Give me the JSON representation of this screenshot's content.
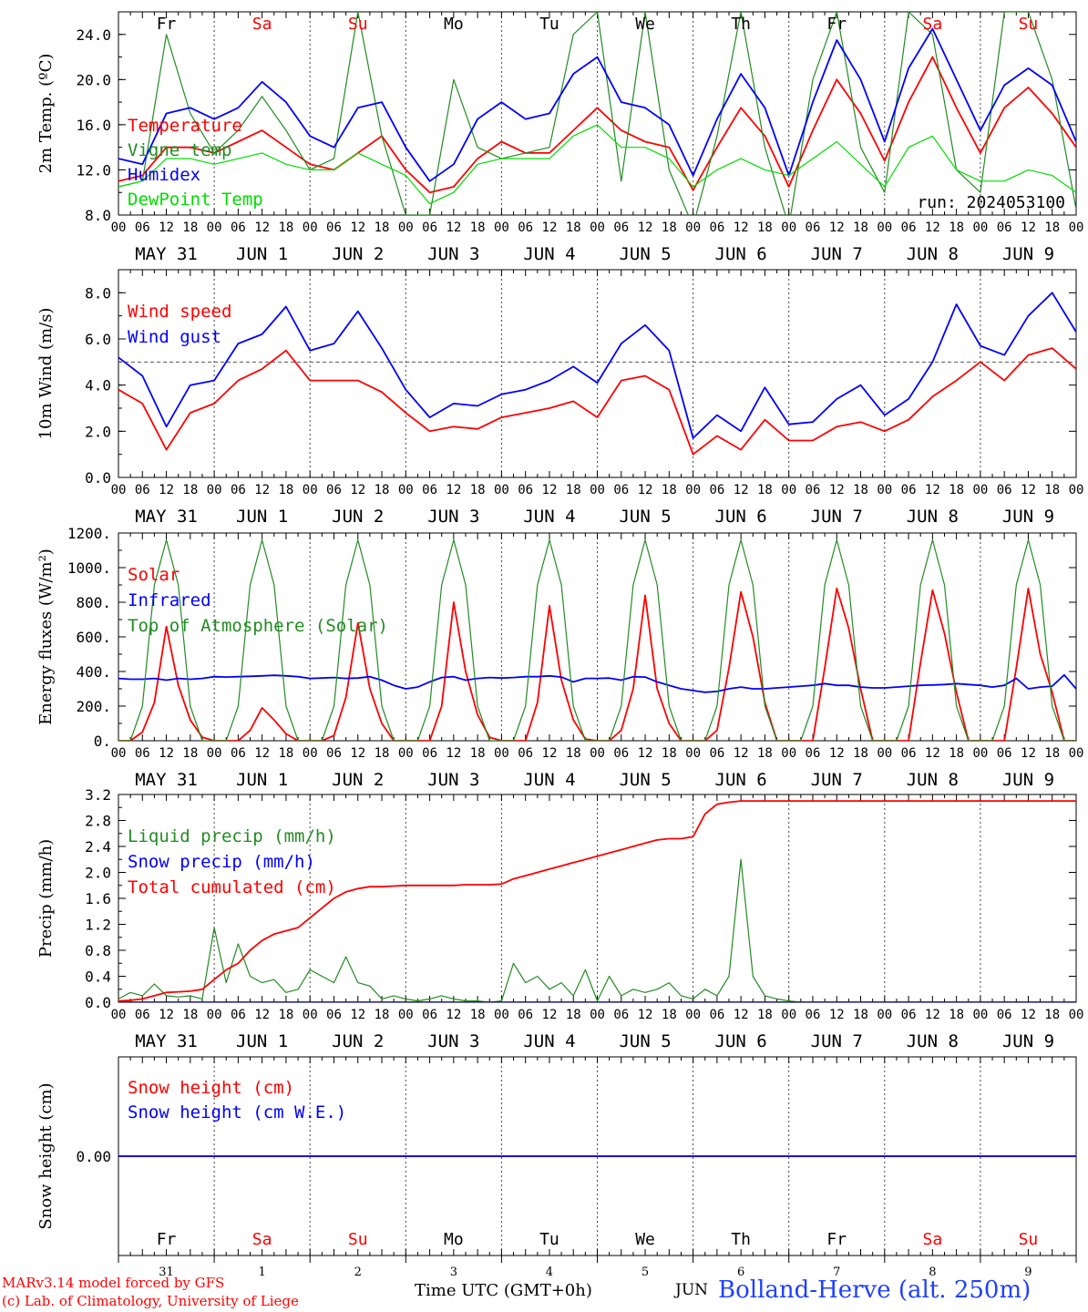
{
  "run_label": "run: 2024053100",
  "days": [
    "Fr",
    "Sa",
    "Su",
    "Mo",
    "Tu",
    "We",
    "Th",
    "Fr",
    "Sa",
    "Su"
  ],
  "weekend_color": "#ff0000",
  "date_labels": [
    "MAY 31",
    "JUN  1",
    "JUN  2",
    "JUN  3",
    "JUN  4",
    "JUN  5",
    "JUN  6",
    "JUN  7",
    "JUN  8",
    "JUN  9"
  ],
  "day_numbers": [
    "31",
    "1",
    "2",
    "3",
    "4",
    "5",
    "6",
    "7",
    "8",
    "9"
  ],
  "hour_ticks": [
    "00",
    "06",
    "12",
    "18"
  ],
  "footer": {
    "credit_line1": "MARv3.14 model forced by GFS",
    "credit_line2": "(c) Lab. of Climatology, University of Liege",
    "time_label": "Time UTC (GMT+0h)",
    "month_label": "JUN",
    "station": "Bolland-Herve (alt. 250m)"
  },
  "chart_data": [
    {
      "type": "line",
      "ylabel": "2m Temp. (ºC)",
      "ylim": [
        8,
        26
      ],
      "yticks": [
        "8.0",
        "12.0",
        "16.0",
        "20.0",
        "24.0"
      ],
      "ytick_values": [
        8,
        12,
        16,
        20,
        24
      ],
      "x_unit": "hours since May 31 00 UTC",
      "x": [
        0,
        6,
        12,
        18,
        24,
        30,
        36,
        42,
        48,
        54,
        60,
        66,
        72,
        78,
        84,
        90,
        96,
        102,
        108,
        114,
        120,
        126,
        132,
        138,
        144,
        150,
        156,
        162,
        168,
        174,
        180,
        186,
        192,
        198,
        204,
        210,
        216,
        222,
        228,
        234,
        240
      ],
      "series": [
        {
          "name": "Temperature",
          "color": "#ff0000",
          "values": [
            11,
            11.5,
            14,
            14,
            13.5,
            14.5,
            15.5,
            14,
            12.5,
            12,
            13.5,
            15,
            12,
            10,
            10.5,
            13,
            14.5,
            13.5,
            13.5,
            15.5,
            17.5,
            15.5,
            14.5,
            14,
            10.2,
            14,
            17.5,
            15,
            10.5,
            15.5,
            20,
            17,
            12.8,
            18,
            22,
            17.5,
            13.5,
            17.5,
            19.3,
            17,
            14
          ]
        },
        {
          "name": "Vigne temp",
          "color": "#228b22",
          "values": [
            10.5,
            11,
            24,
            17,
            13.5,
            15.5,
            18.5,
            15.5,
            12,
            13,
            26,
            15,
            8,
            8,
            20,
            14,
            13,
            13.5,
            14,
            24,
            26,
            11,
            26,
            12,
            7,
            15,
            26,
            14,
            7,
            20,
            26,
            14,
            10,
            26,
            24,
            12,
            10,
            26,
            26,
            20,
            8.5
          ]
        },
        {
          "name": "Humidex",
          "color": "#0000ff",
          "values": [
            13,
            12.5,
            17,
            17.5,
            16.5,
            17.5,
            19.8,
            18,
            15,
            14,
            17.5,
            18,
            14,
            11,
            12.5,
            16.5,
            18,
            16.5,
            17,
            20.5,
            22,
            18,
            17.5,
            16,
            11.5,
            16.5,
            20.5,
            17.5,
            11.5,
            18,
            23.5,
            20,
            14.5,
            21,
            24.5,
            20,
            15.5,
            19.5,
            21,
            19.5,
            14.5
          ]
        },
        {
          "name": "DewPoint Temp",
          "color": "#00dd00",
          "values": [
            10.5,
            11,
            13,
            13,
            12.5,
            13,
            13.5,
            12.5,
            12,
            12,
            13.5,
            12.5,
            11.5,
            9,
            10,
            12.5,
            13,
            13,
            13,
            15,
            16,
            14,
            14,
            13,
            10.5,
            12,
            13,
            12,
            11.5,
            13,
            14.5,
            12.5,
            10.5,
            14,
            15,
            12,
            11,
            11,
            12,
            11.5,
            10
          ]
        }
      ]
    },
    {
      "type": "line",
      "ylabel": "10m Wind (m/s)",
      "ylim": [
        0,
        9.0
      ],
      "yticks": [
        "0.0",
        "2.0",
        "4.0",
        "6.0",
        "8.0"
      ],
      "ytick_values": [
        0,
        2,
        4,
        6,
        8
      ],
      "reference_line": 5.0,
      "x": [
        0,
        6,
        12,
        18,
        24,
        30,
        36,
        42,
        48,
        54,
        60,
        66,
        72,
        78,
        84,
        90,
        96,
        102,
        108,
        114,
        120,
        126,
        132,
        138,
        144,
        150,
        156,
        162,
        168,
        174,
        180,
        186,
        192,
        198,
        204,
        210,
        216,
        222,
        228,
        234,
        240
      ],
      "series": [
        {
          "name": "Wind speed",
          "color": "#ff0000",
          "values": [
            3.8,
            3.2,
            1.2,
            2.8,
            3.2,
            4.2,
            4.7,
            5.5,
            4.2,
            4.2,
            4.2,
            3.7,
            2.8,
            2.0,
            2.2,
            2.1,
            2.6,
            2.8,
            3.0,
            3.3,
            2.6,
            4.2,
            4.4,
            3.8,
            1.0,
            1.8,
            1.2,
            2.5,
            1.6,
            1.6,
            2.2,
            2.4,
            2.0,
            2.5,
            3.5,
            4.2,
            5.0,
            4.2,
            5.3,
            5.6,
            4.7
          ]
        },
        {
          "name": "Wind gust",
          "color": "#0000ff",
          "values": [
            5.2,
            4.4,
            2.2,
            4.0,
            4.2,
            5.8,
            6.2,
            7.4,
            5.5,
            5.8,
            7.2,
            5.6,
            3.8,
            2.6,
            3.2,
            3.1,
            3.6,
            3.8,
            4.2,
            4.8,
            4.1,
            5.8,
            6.6,
            5.5,
            1.7,
            2.7,
            2.0,
            3.9,
            2.3,
            2.4,
            3.4,
            4.0,
            2.7,
            3.4,
            5.0,
            7.5,
            5.7,
            5.3,
            7.0,
            8.0,
            6.3
          ]
        }
      ]
    },
    {
      "type": "line",
      "ylabel": "Energy fluxes (W/m²)",
      "ylim": [
        0,
        1200
      ],
      "yticks": [
        "0.",
        "200.",
        "400.",
        "600.",
        "800.",
        "1000.",
        "1200."
      ],
      "ytick_values": [
        0,
        200,
        400,
        600,
        800,
        1000,
        1200
      ],
      "x": [
        0,
        3,
        6,
        9,
        12,
        15,
        18,
        21,
        24,
        27,
        30,
        33,
        36,
        39,
        42,
        45,
        48,
        51,
        54,
        57,
        60,
        63,
        66,
        69,
        72,
        75,
        78,
        81,
        84,
        87,
        90,
        93,
        96,
        99,
        102,
        105,
        108,
        111,
        114,
        117,
        120,
        123,
        126,
        129,
        132,
        135,
        138,
        141,
        144,
        147,
        150,
        153,
        156,
        159,
        162,
        165,
        168,
        171,
        174,
        177,
        180,
        183,
        186,
        189,
        192,
        195,
        198,
        201,
        204,
        207,
        210,
        213,
        216,
        219,
        222,
        225,
        228,
        231,
        234,
        237,
        240
      ],
      "series": [
        {
          "name": "Solar",
          "color": "#ff0000",
          "values": [
            0,
            0,
            50,
            220,
            660,
            320,
            120,
            20,
            0,
            0,
            0,
            60,
            190,
            120,
            40,
            0,
            0,
            0,
            30,
            250,
            680,
            300,
            100,
            0,
            0,
            0,
            0,
            200,
            800,
            400,
            150,
            20,
            0,
            0,
            0,
            220,
            780,
            350,
            120,
            10,
            0,
            0,
            60,
            300,
            840,
            300,
            100,
            0,
            0,
            0,
            60,
            420,
            860,
            600,
            220,
            0,
            0,
            0,
            0,
            420,
            880,
            650,
            300,
            0,
            0,
            0,
            0,
            450,
            870,
            620,
            280,
            0,
            0,
            0,
            0,
            420,
            880,
            500,
            280,
            0,
            0
          ]
        },
        {
          "name": "Infrared",
          "color": "#0000ff",
          "values": [
            360,
            355,
            355,
            360,
            350,
            360,
            355,
            360,
            370,
            368,
            370,
            372,
            375,
            378,
            375,
            370,
            360,
            362,
            365,
            360,
            362,
            370,
            350,
            320,
            300,
            310,
            340,
            365,
            370,
            350,
            360,
            365,
            362,
            365,
            370,
            370,
            375,
            368,
            340,
            360,
            360,
            362,
            350,
            370,
            368,
            340,
            320,
            300,
            290,
            280,
            285,
            300,
            310,
            300,
            300,
            305,
            310,
            315,
            320,
            330,
            320,
            320,
            310,
            305,
            305,
            310,
            315,
            320,
            322,
            325,
            330,
            325,
            320,
            310,
            320,
            360,
            300,
            310,
            315,
            380,
            300
          ]
        },
        {
          "name": "Top of Atmosphere (Solar)",
          "color": "#228b22",
          "values": [
            0,
            0,
            200,
            900,
            1160,
            900,
            200,
            0,
            0,
            0,
            200,
            900,
            1160,
            900,
            200,
            0,
            0,
            0,
            200,
            900,
            1160,
            900,
            200,
            0,
            0,
            0,
            200,
            900,
            1160,
            900,
            200,
            0,
            0,
            0,
            200,
            900,
            1160,
            900,
            200,
            0,
            0,
            0,
            200,
            900,
            1160,
            900,
            200,
            0,
            0,
            0,
            200,
            900,
            1160,
            900,
            200,
            0,
            0,
            0,
            200,
            900,
            1160,
            900,
            200,
            0,
            0,
            0,
            200,
            900,
            1160,
            900,
            200,
            0,
            0,
            0,
            200,
            900,
            1160,
            900,
            200,
            0,
            0
          ]
        }
      ]
    },
    {
      "type": "line",
      "ylabel": "Precip (mm/h)",
      "ylim": [
        0,
        3.2
      ],
      "yticks": [
        "0.0",
        "0.4",
        "0.8",
        "1.2",
        "1.6",
        "2.0",
        "2.4",
        "2.8",
        "3.2"
      ],
      "ytick_values": [
        0,
        0.4,
        0.8,
        1.2,
        1.6,
        2.0,
        2.4,
        2.8,
        3.2
      ],
      "x": [
        0,
        3,
        6,
        9,
        12,
        15,
        18,
        21,
        24,
        27,
        30,
        33,
        36,
        39,
        42,
        45,
        48,
        51,
        54,
        57,
        60,
        63,
        66,
        69,
        72,
        75,
        78,
        81,
        84,
        87,
        90,
        93,
        96,
        99,
        102,
        105,
        108,
        111,
        114,
        117,
        120,
        123,
        126,
        129,
        132,
        135,
        138,
        141,
        144,
        147,
        150,
        153,
        156,
        159,
        162,
        165,
        168,
        171,
        174,
        177,
        180,
        183,
        186,
        189,
        192,
        195,
        198,
        201,
        204,
        207,
        210,
        213,
        216,
        219,
        222,
        225,
        228,
        231,
        234,
        237,
        240
      ],
      "series": [
        {
          "name": "Liquid precip (mm/h)",
          "color": "#228b22",
          "values": [
            0.05,
            0.15,
            0.1,
            0.28,
            0.1,
            0.08,
            0.1,
            0.05,
            1.15,
            0.3,
            0.9,
            0.4,
            0.3,
            0.35,
            0.15,
            0.2,
            0.5,
            0.4,
            0.3,
            0.7,
            0.3,
            0.25,
            0.05,
            0.1,
            0.05,
            0.02,
            0.05,
            0.1,
            0.05,
            0.02,
            0.02,
            0.0,
            0.02,
            0.6,
            0.3,
            0.4,
            0.2,
            0.3,
            0.1,
            0.5,
            0.02,
            0.4,
            0.1,
            0.2,
            0.15,
            0.2,
            0.3,
            0.1,
            0.05,
            0.2,
            0.1,
            0.4,
            2.2,
            0.4,
            0.1,
            0.05,
            0.02,
            0.0,
            0.0,
            0.0,
            0.0,
            0.0,
            0.0,
            0.0,
            0.0,
            0.0,
            0.0,
            0.0,
            0.0,
            0.0,
            0.0,
            0.0,
            0.0,
            0.0,
            0.0,
            0.0,
            0.0,
            0.0,
            0.0,
            0.0,
            0.0
          ]
        },
        {
          "name": "Snow precip (mm/h)",
          "color": "#0000ff",
          "values": [
            0,
            0,
            0,
            0,
            0,
            0,
            0,
            0,
            0,
            0,
            0,
            0,
            0,
            0,
            0,
            0,
            0,
            0,
            0,
            0,
            0,
            0,
            0,
            0,
            0,
            0,
            0,
            0,
            0,
            0,
            0,
            0,
            0,
            0,
            0,
            0,
            0,
            0,
            0,
            0,
            0,
            0,
            0,
            0,
            0,
            0,
            0,
            0,
            0,
            0,
            0,
            0,
            0,
            0,
            0,
            0,
            0,
            0,
            0,
            0,
            0,
            0,
            0,
            0,
            0,
            0,
            0,
            0,
            0,
            0,
            0,
            0,
            0,
            0,
            0,
            0,
            0,
            0,
            0,
            0,
            0
          ]
        },
        {
          "name": "Total cumulated (cm)",
          "color": "#ff0000",
          "values": [
            0.02,
            0.03,
            0.05,
            0.1,
            0.15,
            0.16,
            0.17,
            0.2,
            0.35,
            0.5,
            0.6,
            0.8,
            0.95,
            1.05,
            1.1,
            1.15,
            1.3,
            1.45,
            1.6,
            1.7,
            1.75,
            1.78,
            1.78,
            1.79,
            1.8,
            1.8,
            1.8,
            1.8,
            1.8,
            1.81,
            1.81,
            1.81,
            1.82,
            1.9,
            1.95,
            2.0,
            2.05,
            2.1,
            2.15,
            2.2,
            2.25,
            2.3,
            2.35,
            2.4,
            2.45,
            2.5,
            2.52,
            2.52,
            2.55,
            2.9,
            3.05,
            3.08,
            3.1,
            3.1,
            3.1,
            3.1,
            3.1,
            3.1,
            3.1,
            3.1,
            3.1,
            3.1,
            3.1,
            3.1,
            3.1,
            3.1,
            3.1,
            3.1,
            3.1,
            3.1,
            3.1,
            3.1,
            3.1,
            3.1,
            3.1,
            3.1,
            3.1,
            3.1,
            3.1,
            3.1,
            3.1
          ]
        }
      ]
    },
    {
      "type": "line",
      "ylabel": "Snow height (cm)",
      "yticks": [
        "0.00"
      ],
      "ytick_values": [
        0
      ],
      "x": [
        0,
        240
      ],
      "series": [
        {
          "name": "Snow height (cm)",
          "color": "#ff0000",
          "values": [
            0,
            0
          ]
        },
        {
          "name": "Snow height (cm W.E.)",
          "color": "#0000ff",
          "values": [
            0,
            0
          ]
        }
      ]
    }
  ]
}
